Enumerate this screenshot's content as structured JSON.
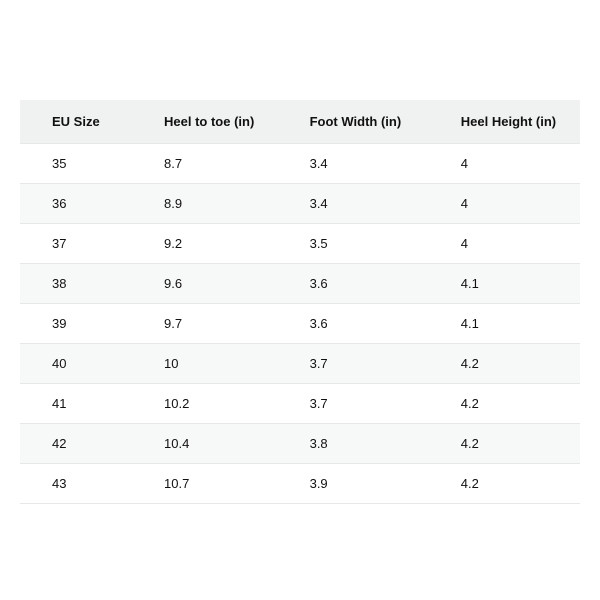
{
  "size_chart": {
    "type": "table",
    "background_color": "#ffffff",
    "header_bg": "#f0f2f2",
    "row_even_bg": "#f7f8f8",
    "row_odd_bg": "#ffffff",
    "border_color": "#e7e7e7",
    "text_color": "#111111",
    "font_size_pt": 10,
    "header_font_weight": 700,
    "column_widths_pct": [
      20,
      26,
      27,
      27
    ],
    "columns": [
      "EU Size",
      "Heel to toe (in)",
      "Foot Width (in)",
      "Heel Height (in)"
    ],
    "rows": [
      [
        "35",
        "8.7",
        "3.4",
        "4"
      ],
      [
        "36",
        "8.9",
        "3.4",
        "4"
      ],
      [
        "37",
        "9.2",
        "3.5",
        "4"
      ],
      [
        "38",
        "9.6",
        "3.6",
        "4.1"
      ],
      [
        "39",
        "9.7",
        "3.6",
        "4.1"
      ],
      [
        "40",
        "10",
        "3.7",
        "4.2"
      ],
      [
        "41",
        "10.2",
        "3.7",
        "4.2"
      ],
      [
        "42",
        "10.4",
        "3.8",
        "4.2"
      ],
      [
        "43",
        "10.7",
        "3.9",
        "4.2"
      ]
    ]
  }
}
